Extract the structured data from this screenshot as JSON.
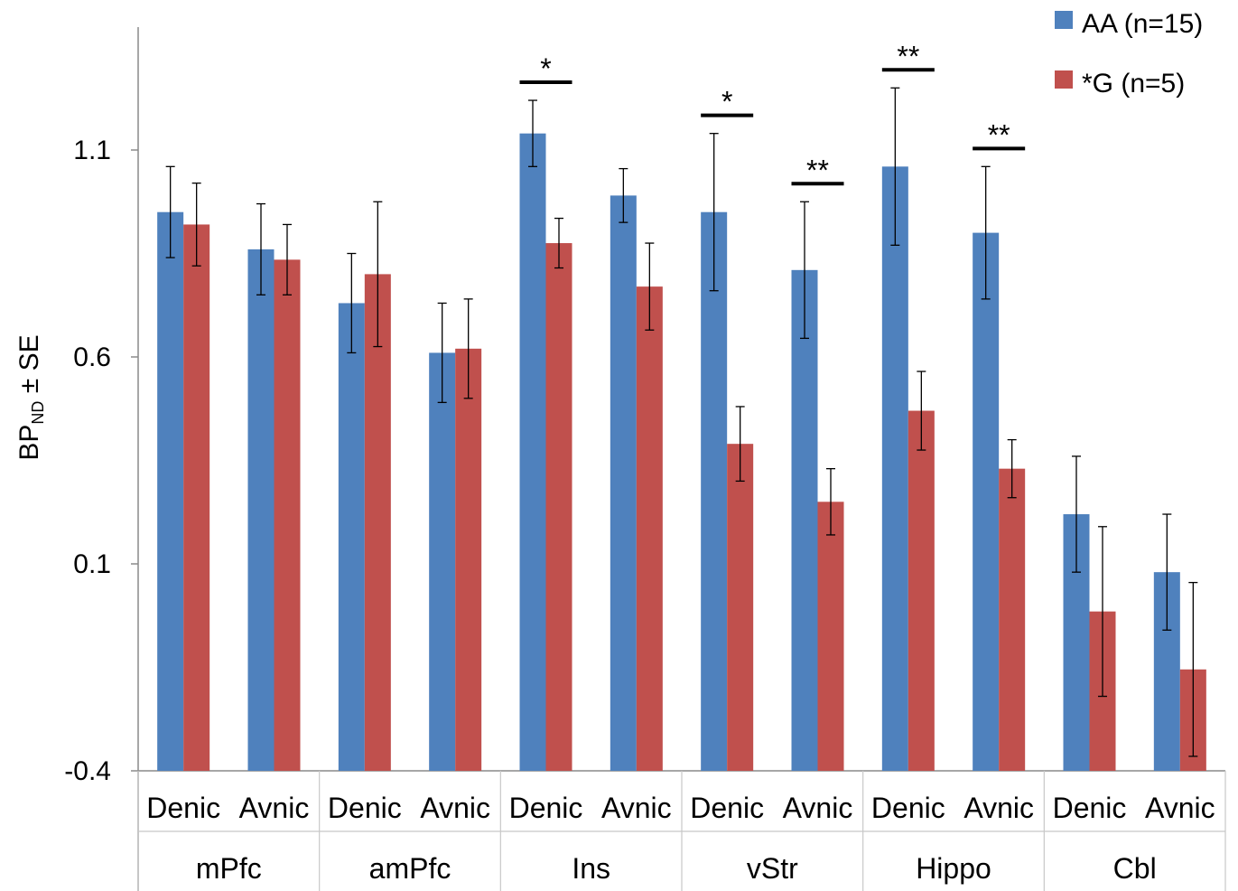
{
  "chart_data": {
    "type": "bar",
    "ylabel_main": "BP",
    "ylabel_sub": "ND",
    "ylabel_tail": " ± SE",
    "ylim": [
      -0.4,
      1.4
    ],
    "yticks": [
      -0.4,
      0.1,
      0.6,
      1.1
    ],
    "ytick_labels": [
      "-0.4",
      "0.1",
      "0.6",
      "1.1"
    ],
    "grid": false,
    "legend_position": "top-right",
    "regions": [
      "mPfc",
      "amPfc",
      "Ins",
      "vStr",
      "Hippo",
      "Cbl"
    ],
    "conditions": [
      "Denic",
      "Avnic"
    ],
    "categories": [
      "mPfc Denic",
      "mPfc Avnic",
      "amPfc Denic",
      "amPfc Avnic",
      "Ins Denic",
      "Ins Avnic",
      "vStr Denic",
      "vStr Avnic",
      "Hippo Denic",
      "Hippo Avnic",
      "Cbl Denic",
      "Cbl Avnic"
    ],
    "series": [
      {
        "name": "AA (n=15)",
        "color": "#4f81bd",
        "values": [
          0.95,
          0.86,
          0.73,
          0.61,
          1.14,
          0.99,
          0.95,
          0.81,
          1.06,
          0.9,
          0.22,
          0.08
        ],
        "errors": [
          0.11,
          0.11,
          0.12,
          0.12,
          0.08,
          0.065,
          0.19,
          0.165,
          0.19,
          0.16,
          0.14,
          0.14
        ]
      },
      {
        "name": "*G (n=5)",
        "color": "#c0504d",
        "values": [
          0.92,
          0.835,
          0.8,
          0.62,
          0.875,
          0.77,
          0.39,
          0.25,
          0.47,
          0.33,
          -0.015,
          -0.155
        ],
        "errors": [
          0.1,
          0.085,
          0.175,
          0.12,
          0.06,
          0.105,
          0.09,
          0.08,
          0.095,
          0.07,
          0.205,
          0.21
        ]
      }
    ],
    "significance": [
      {
        "category_index": 4,
        "label": "*"
      },
      {
        "category_index": 6,
        "label": "*"
      },
      {
        "category_index": 7,
        "label": "**"
      },
      {
        "category_index": 8,
        "label": "**"
      },
      {
        "category_index": 9,
        "label": "**"
      }
    ]
  }
}
